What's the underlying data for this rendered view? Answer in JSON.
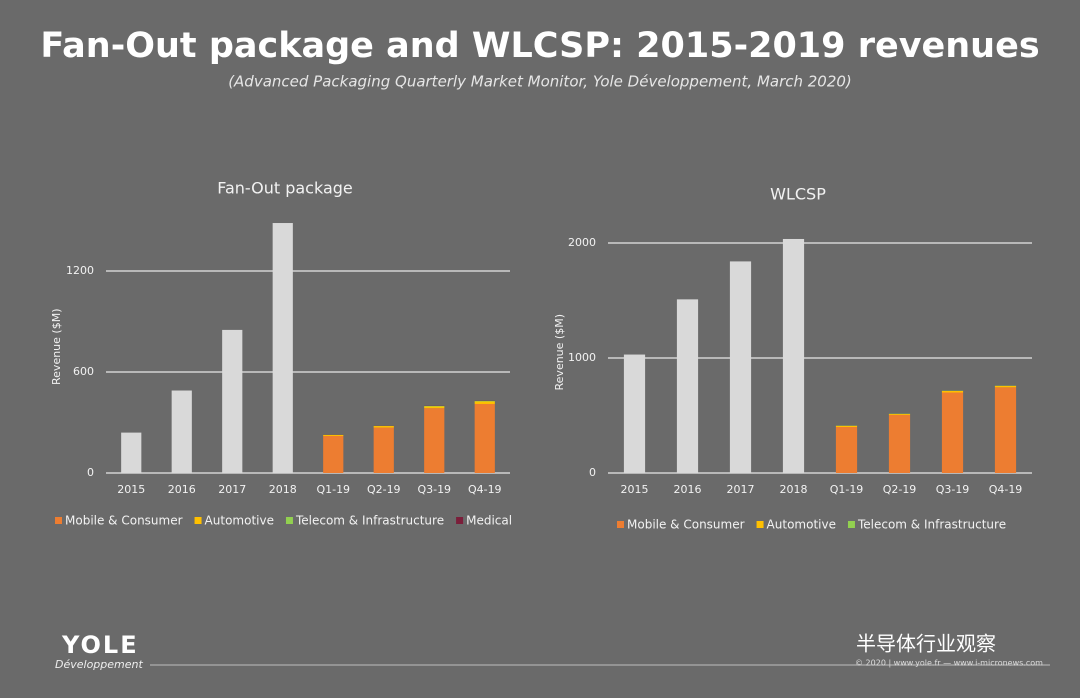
{
  "slide": {
    "title": "Fan-Out package and WLCSP: 2015-2019 revenues",
    "subtitle": "(Advanced Packaging Quarterly Market Monitor, Yole Développement, March 2020)"
  },
  "chart_data": [
    {
      "type": "bar",
      "stacked": true,
      "title": "Fan-Out package",
      "y_label": "Revenue ($M)",
      "categories": [
        "2015",
        "2016",
        "2017",
        "2018",
        "Q1-19",
        "Q2-19",
        "Q3-19",
        "Q4-19"
      ],
      "series": [
        {
          "color": "#d9d9d9",
          "values": [
            240,
            490,
            850,
            1485,
            null,
            null,
            null,
            null
          ]
        },
        {
          "name": "Mobile & Consumer",
          "color": "#ed7d31",
          "values": [
            null,
            null,
            null,
            null,
            220,
            270,
            385,
            410
          ]
        },
        {
          "name": "Automotive",
          "color": "#ffc000",
          "values": [
            null,
            null,
            null,
            null,
            6,
            9,
            10,
            15
          ]
        },
        {
          "name": "Telecom & Infrastructure",
          "color": "#92d050",
          "values": [
            null,
            null,
            null,
            null,
            1,
            1,
            3,
            3
          ]
        },
        {
          "name": "Medical",
          "color": "#7b1e3a",
          "values": [
            null,
            null,
            null,
            null,
            1,
            1,
            1,
            1
          ]
        }
      ],
      "ylim": [
        0,
        1500
      ],
      "yticks": [
        0,
        600,
        1200
      ],
      "grid": true
    },
    {
      "type": "bar",
      "stacked": true,
      "title": "WLCSP",
      "y_label": "Revenue ($M)",
      "categories": [
        "2015",
        "2016",
        "2017",
        "2018",
        "Q1-19",
        "Q2-19",
        "Q3-19",
        "Q4-19"
      ],
      "series": [
        {
          "color": "#d9d9d9",
          "values": [
            1030,
            1510,
            1840,
            2035,
            null,
            null,
            null,
            null
          ]
        },
        {
          "name": "Mobile & Consumer",
          "color": "#ed7d31",
          "values": [
            null,
            null,
            null,
            null,
            400,
            505,
            700,
            745
          ]
        },
        {
          "name": "Automotive",
          "color": "#ffc000",
          "values": [
            null,
            null,
            null,
            null,
            10,
            8,
            13,
            12
          ]
        },
        {
          "name": "Telecom & Infrastructure",
          "color": "#92d050",
          "values": [
            null,
            null,
            null,
            null,
            2,
            2,
            2,
            2
          ]
        }
      ],
      "ylim": [
        0,
        2100
      ],
      "yticks": [
        0,
        1000,
        2000
      ],
      "grid": true
    }
  ],
  "footer": {
    "logo": "YOLE",
    "logo_sub": "Développement",
    "copyright": "© 2020 | www.yole.fr — www.i-micronews.com",
    "watermark": "半导体行业观察"
  }
}
